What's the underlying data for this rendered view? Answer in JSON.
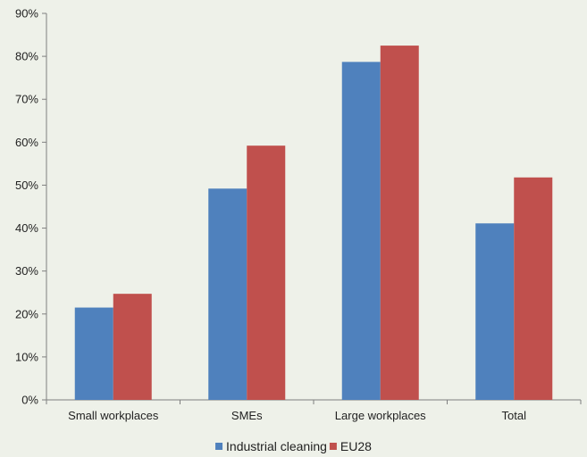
{
  "colors": {
    "background": "#EEF1E9",
    "axis": "#7F7F7F",
    "series_1": "#4F81BD",
    "series_2": "#C0504D"
  },
  "chart_data": {
    "type": "bar",
    "title": "",
    "xlabel": "",
    "ylabel": "",
    "categories": [
      "Small workplaces",
      "SMEs",
      "Large workplaces",
      "Total"
    ],
    "series": [
      {
        "name": "Industrial cleaning",
        "values": [
          21.5,
          49.2,
          78.7,
          41.1
        ],
        "color": "#4F81BD"
      },
      {
        "name": "EU28",
        "values": [
          24.7,
          59.2,
          82.5,
          51.8
        ],
        "color": "#C0504D"
      }
    ],
    "ylim": [
      0,
      90
    ],
    "y_ticks": [
      "0%",
      "10%",
      "20%",
      "30%",
      "40%",
      "50%",
      "60%",
      "70%",
      "80%",
      "90%"
    ],
    "grid": false,
    "legend": "bottom"
  }
}
